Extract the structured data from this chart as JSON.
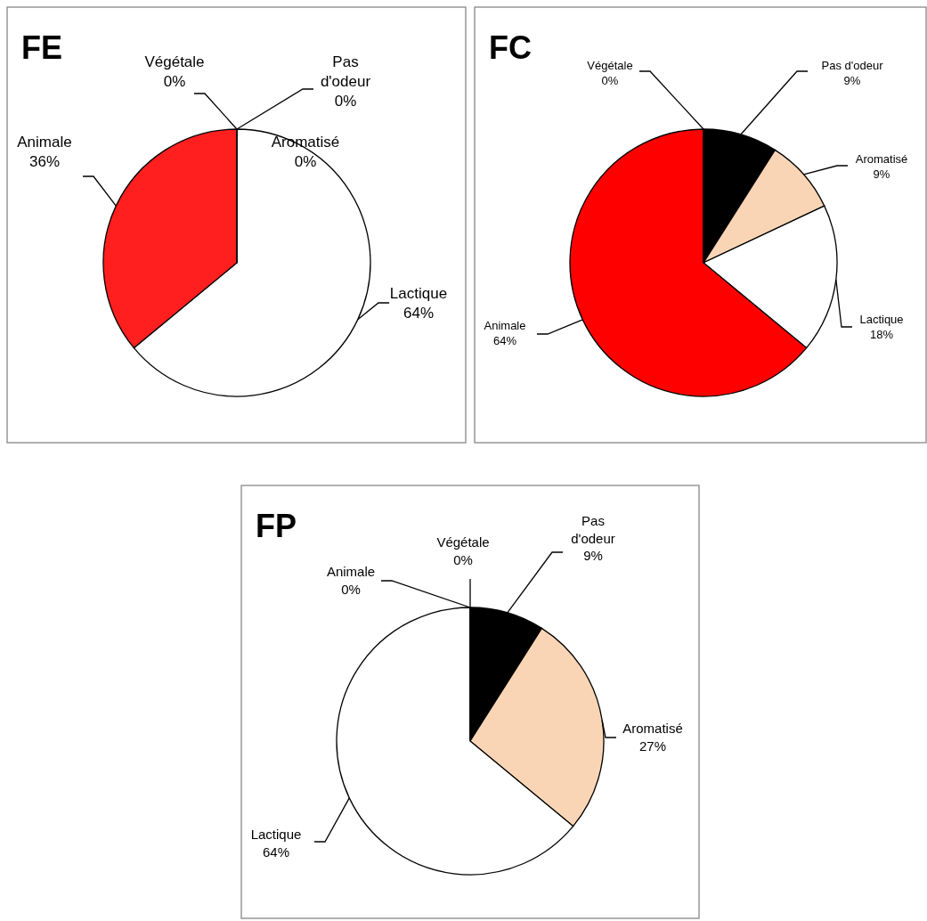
{
  "chart_data": [
    {
      "type": "pie",
      "title": "FE",
      "categories": [
        "Pas d'odeur",
        "Aromatisé",
        "Lactique",
        "Animale",
        "Végétale"
      ],
      "values": [
        0,
        0,
        64,
        36,
        0
      ],
      "value_labels": [
        "0%",
        "0%",
        "64%",
        "36%",
        "0%"
      ],
      "colors": [
        "#000000",
        "#fad5b5",
        "#ffffff",
        "#ff1f1f",
        "#00b050"
      ]
    },
    {
      "type": "pie",
      "title": "FC",
      "categories": [
        "Pas d'odeur",
        "Aromatisé",
        "Lactique",
        "Animale",
        "Végétale"
      ],
      "values": [
        9,
        9,
        18,
        64,
        0
      ],
      "value_labels": [
        "9%",
        "9%",
        "18%",
        "64%",
        "0%"
      ],
      "colors": [
        "#000000",
        "#fad5b5",
        "#ffffff",
        "#ff0000",
        "#00b050"
      ]
    },
    {
      "type": "pie",
      "title": "FP",
      "categories": [
        "Pas d'odeur",
        "Aromatisé",
        "Lactique",
        "Animale",
        "Végétale"
      ],
      "values": [
        9,
        27,
        64,
        0,
        0
      ],
      "value_labels": [
        "9%",
        "27%",
        "64%",
        "0%",
        "0%"
      ],
      "colors": [
        "#000000",
        "#fad5b5",
        "#ffffff",
        "#ff0000",
        "#00b050"
      ]
    }
  ]
}
